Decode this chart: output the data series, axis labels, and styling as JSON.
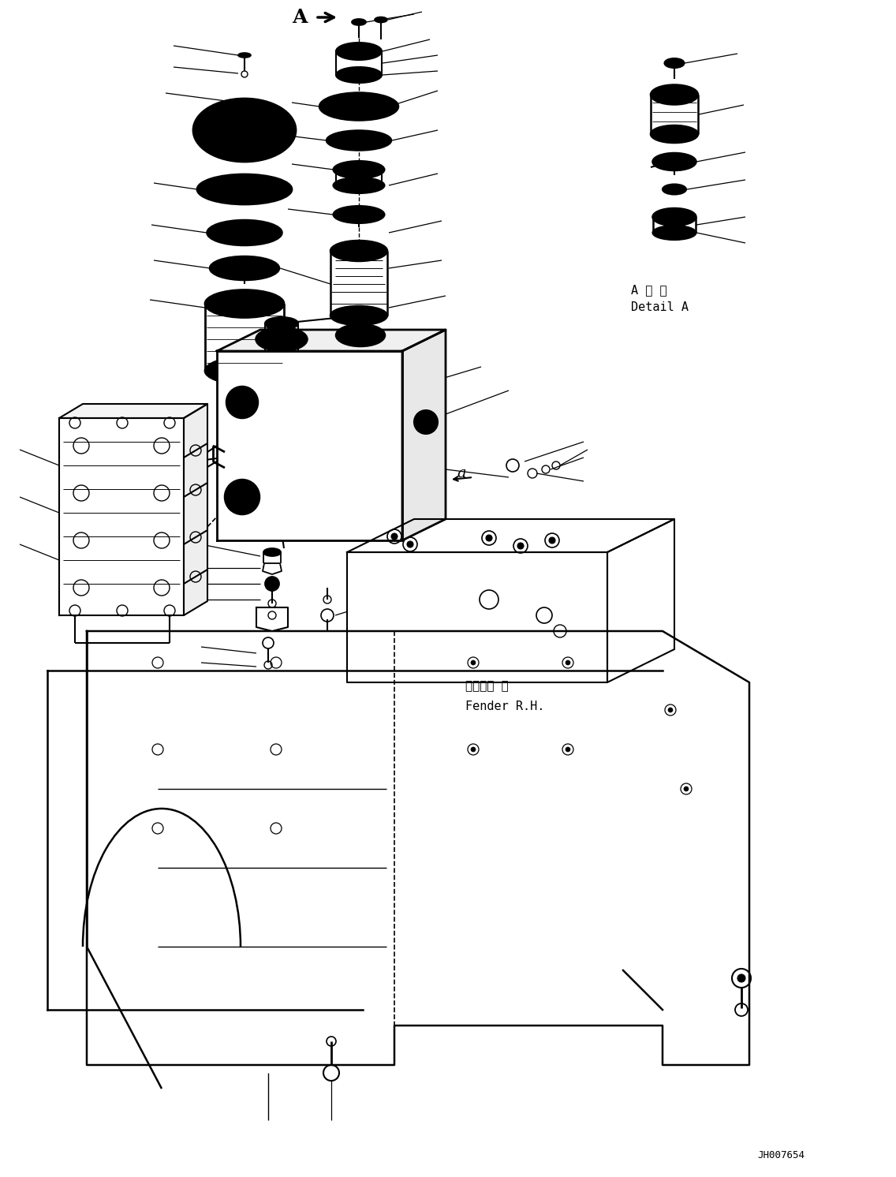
{
  "bg_color": "#ffffff",
  "fig_width": 11.36,
  "fig_height": 14.92,
  "dpi": 100,
  "watermark": "JH007654",
  "detail_label_jp": "A 詳 細",
  "detail_label_en": "Detail A",
  "fender_label_jp": "フェンダ 右",
  "fender_label_en": "Fender R.H.",
  "label_A": "A"
}
